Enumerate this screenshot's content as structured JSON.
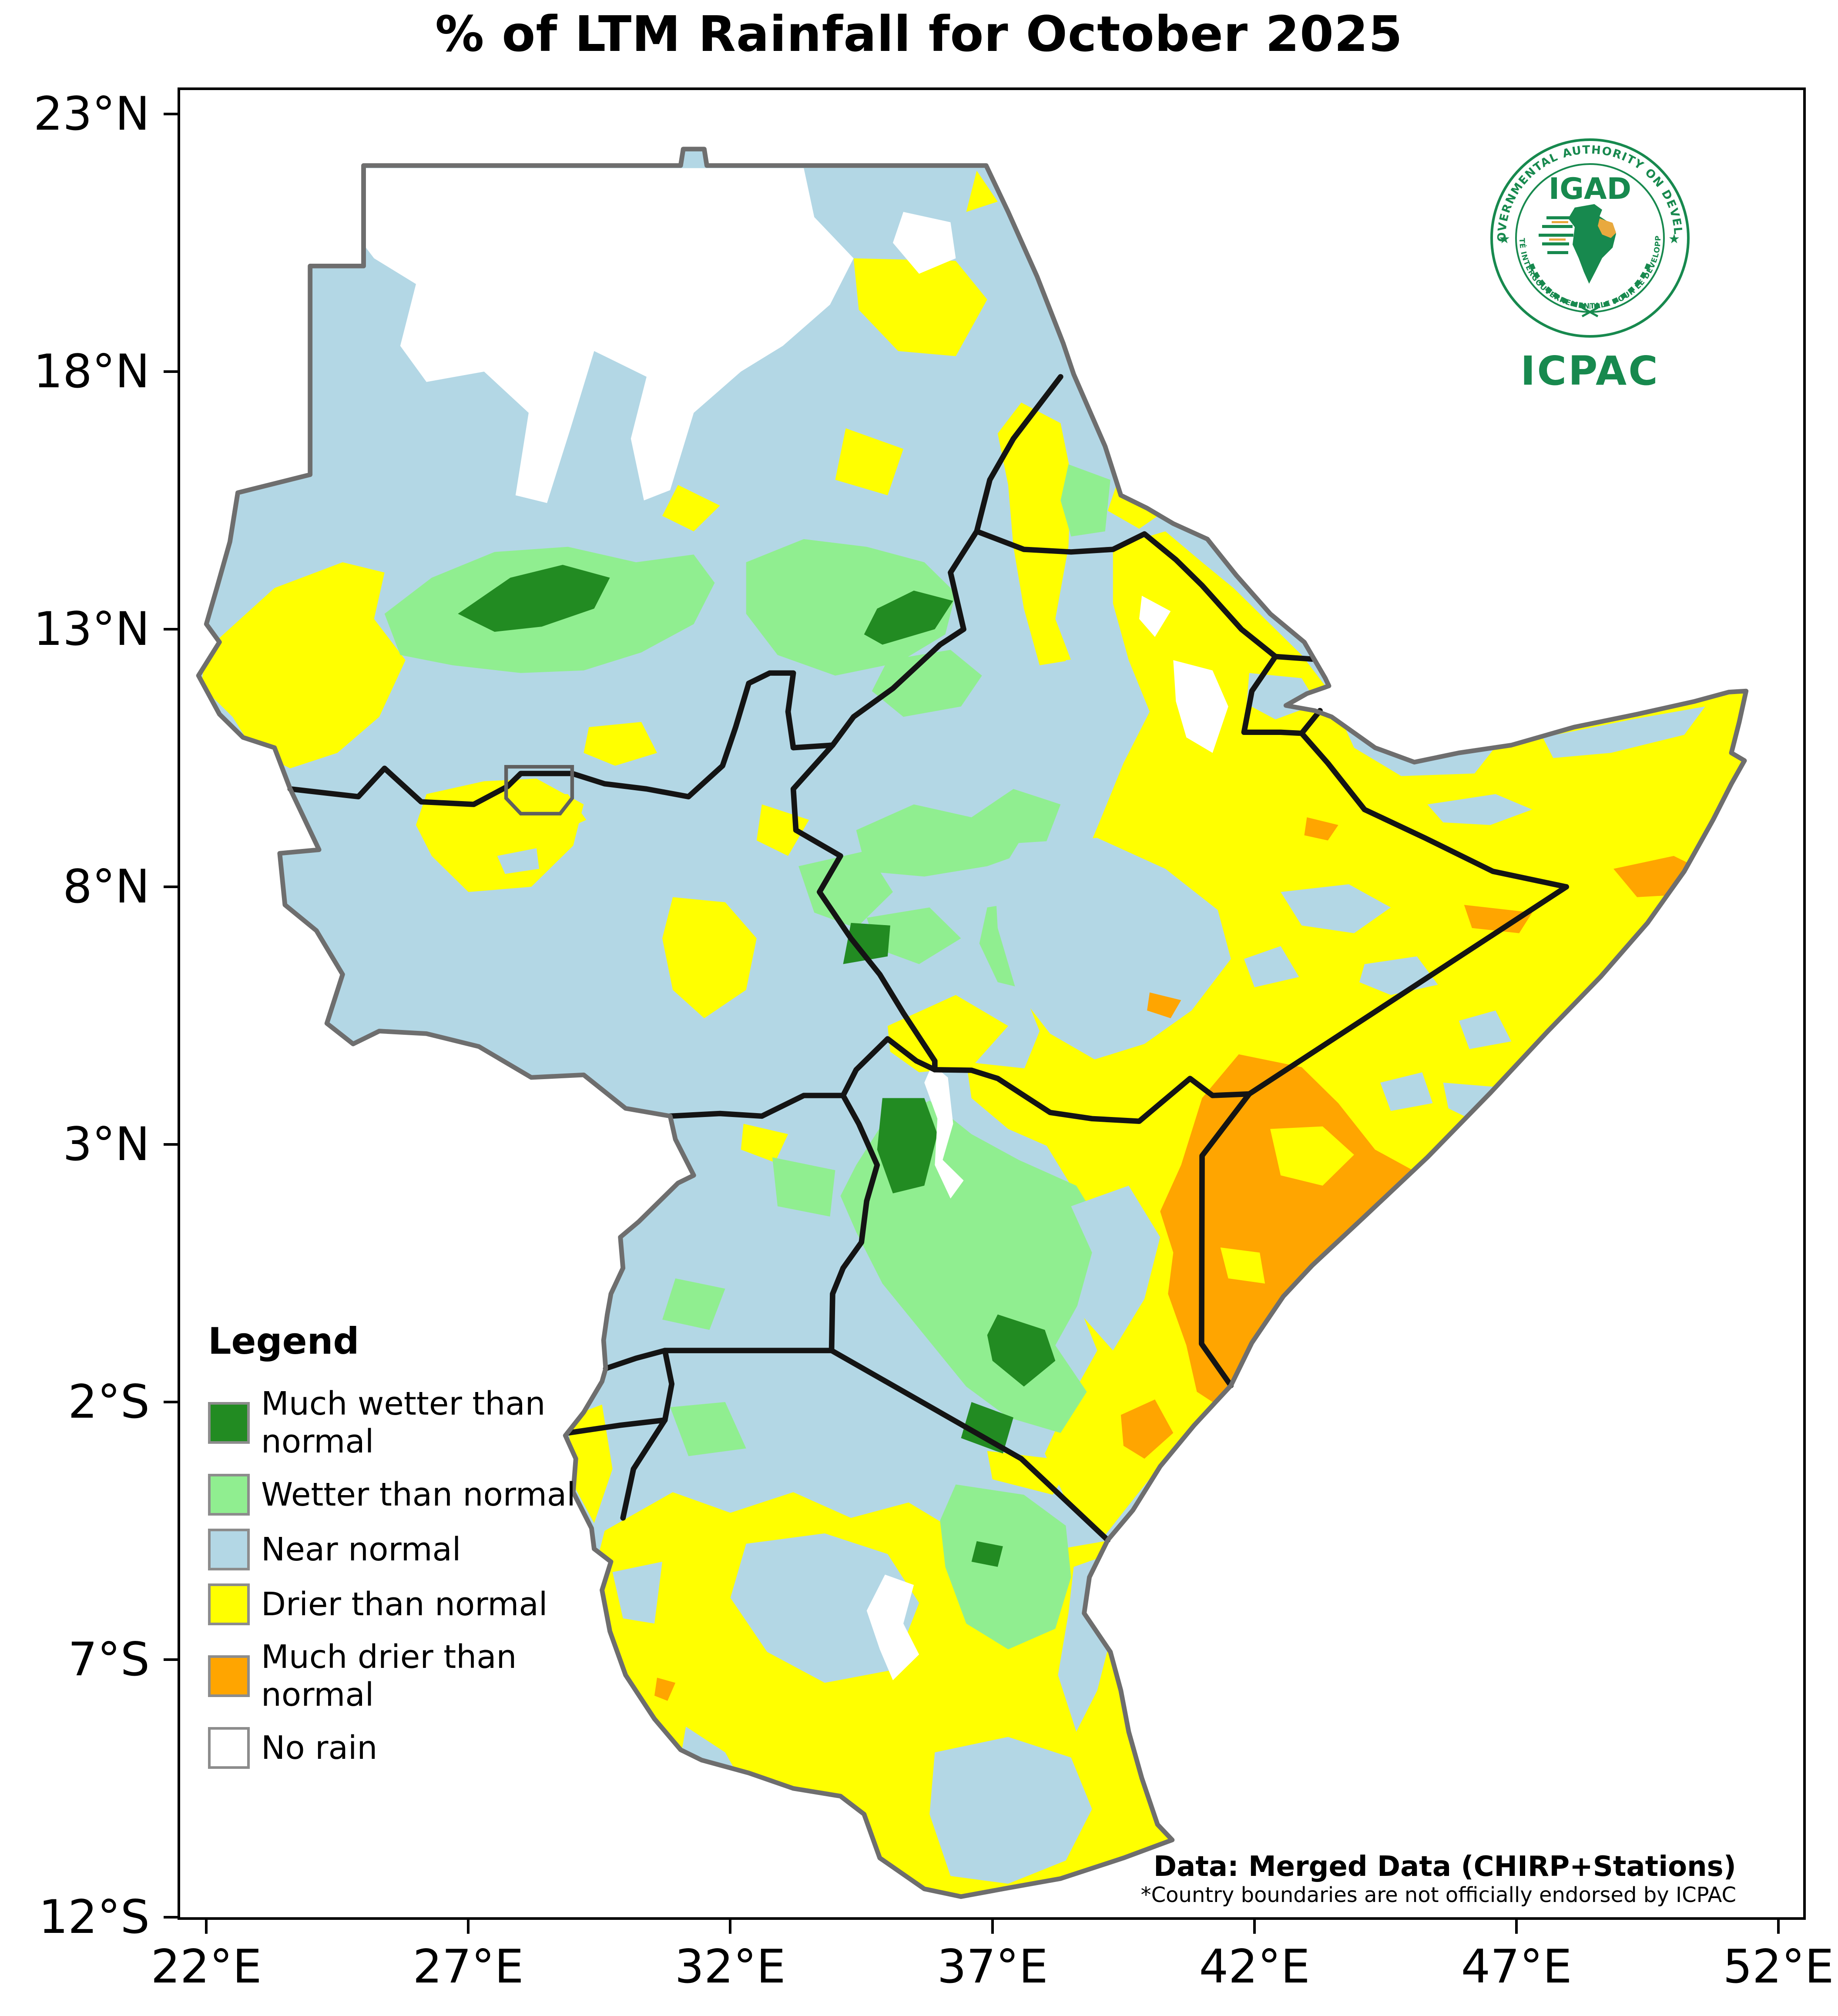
{
  "title": "% of LTM Rainfall for October 2025",
  "axes": {
    "x_ticks": [
      {
        "label": "22°E"
      },
      {
        "label": "27°E"
      },
      {
        "label": "32°E"
      },
      {
        "label": "37°E"
      },
      {
        "label": "42°E"
      },
      {
        "label": "47°E"
      },
      {
        "label": "52°E"
      }
    ],
    "y_ticks": [
      {
        "label": "23°N"
      },
      {
        "label": "18°N"
      },
      {
        "label": "13°N"
      },
      {
        "label": "8°N"
      },
      {
        "label": "3°N"
      },
      {
        "label": "2°S"
      },
      {
        "label": "7°S"
      },
      {
        "label": "12°S"
      }
    ]
  },
  "legend": {
    "title": "Legend",
    "items": [
      {
        "label": "Much wetter than normal",
        "key": "much_wetter"
      },
      {
        "label": "Wetter than normal",
        "key": "wetter"
      },
      {
        "label": "Near normal",
        "key": "near_normal"
      },
      {
        "label": "Drier than normal",
        "key": "drier"
      },
      {
        "label": "Much drier than normal",
        "key": "much_drier"
      },
      {
        "label": "No rain",
        "key": "no_rain"
      }
    ]
  },
  "attribution": {
    "source_bold": "Data: Merged Data (CHIRP+Stations)",
    "disclaimer": "*Country boundaries are not officially endorsed by ICPAC"
  },
  "logo": {
    "acronym": "IGAD",
    "subtitle": "ICPAC",
    "ring_top": "INTERGOVERNMENTAL AUTHORITY ON DEVELOPMENT",
    "ring_bottom": "AUTORITÉ INTERGOUVERNEMENTALE POUR LE DEVELOPPEMENT"
  },
  "colors": {
    "much_wetter": "#228B22",
    "wetter": "#90EE90",
    "near_normal": "#B3D7E5",
    "drier": "#FFFF00",
    "much_drier": "#FFA500",
    "no_rain": "#FFFFFF",
    "coastline": "#6E6E6E",
    "boundary": "#141414",
    "abyei_box": "#606060",
    "swatch_border": "#8C8C8C",
    "logo_green": "#17894E",
    "logo_orange": "#E9A93E"
  }
}
